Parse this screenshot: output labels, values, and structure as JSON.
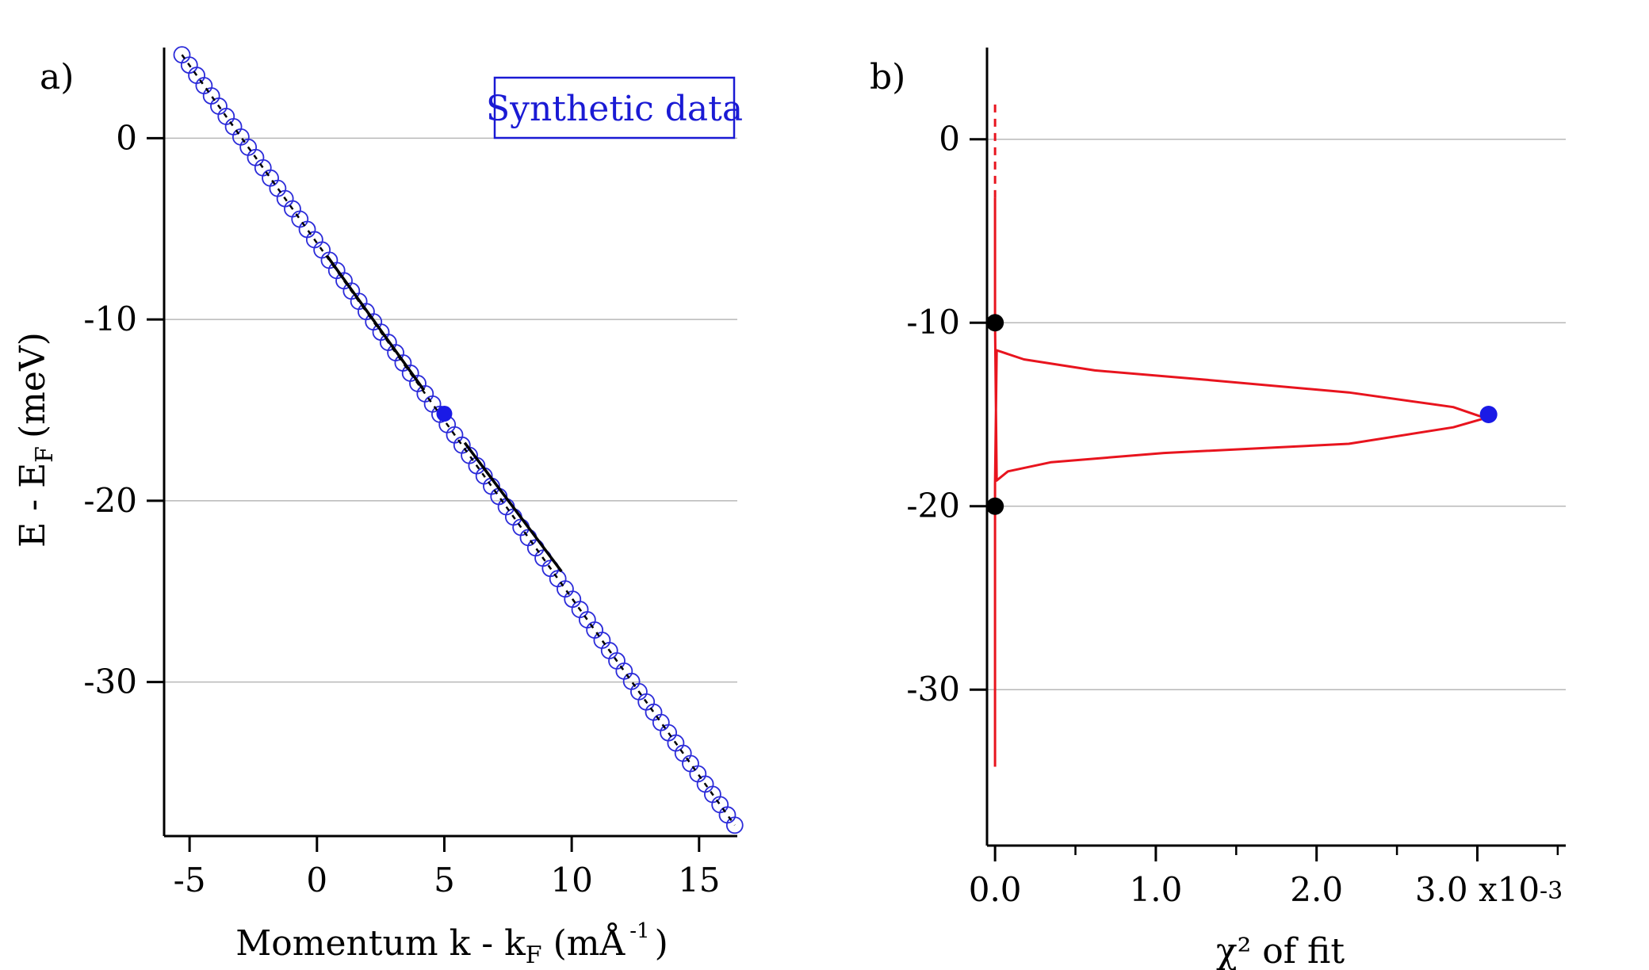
{
  "figure": {
    "panel_a_label": "a)",
    "panel_b_label": "b)"
  },
  "chart_data": [
    {
      "type": "scatter",
      "panel": "a)",
      "xlabel": "Momentum k - k",
      "xlabel_sub": "F",
      "xlabel_unit_open": "(mÅ",
      "xlabel_unit_sup": "-1",
      "xlabel_unit_close": ")",
      "ylabel": "E - E",
      "ylabel_sub": "F",
      "ylabel_unit": "(meV)",
      "xlim": [
        -6,
        16.5
      ],
      "ylim": [
        -38.5,
        5
      ],
      "xticks": [
        -5,
        0,
        5,
        10,
        15
      ],
      "xtick_labels": [
        "-5",
        "0",
        "5",
        "10",
        "15"
      ],
      "yticks": [
        0,
        -10,
        -20,
        -30
      ],
      "ytick_labels": [
        "0",
        "-10",
        "-20",
        "-30"
      ],
      "grid": "horizontal",
      "legend_box": "Synthetic data",
      "legend_placement": "top-right",
      "colors": {
        "markers": "#2b2bd9",
        "highlight": "#1a1ae6",
        "dispersion": "#000000"
      },
      "series": [
        {
          "style": "open-circles",
          "line": [
            [
              -5.3,
              4.6
            ],
            [
              16.4,
              -37.9
            ]
          ],
          "count": 76
        },
        {
          "style": "dashed-line",
          "line": [
            [
              -5.3,
              4.6
            ],
            [
              16.4,
              -37.9
            ]
          ]
        },
        {
          "style": "solid-line",
          "segments": [
            [
              [
                0.4,
                -6.5
              ],
              [
                4.2,
                -13.9
              ]
            ],
            [
              [
                5.8,
                -16.8
              ],
              [
                9.6,
                -23.9
              ]
            ]
          ]
        },
        {
          "style": "filled-point",
          "points": [
            [
              5.0,
              -15.2
            ]
          ]
        }
      ]
    },
    {
      "type": "line",
      "panel": "b)",
      "xlabel": "χ² of  fit",
      "ylabel": "",
      "xlim": [
        -0.05,
        3.55
      ],
      "ylim": [
        -38.5,
        5
      ],
      "xticks": [
        0.0,
        1.0,
        2.0,
        3.0
      ],
      "xtick_labels": [
        "0.0",
        "1.0",
        "2.0",
        "3.0 x10"
      ],
      "x_scale_exponent": "-3",
      "xminor_ticks": [
        0.5,
        1.5,
        2.5,
        3.5
      ],
      "yticks": [
        0,
        -10,
        -20,
        -30
      ],
      "ytick_labels": [
        "0",
        "-10",
        "-20",
        "-30"
      ],
      "grid": "horizontal",
      "colors": {
        "curve": "#e8141e",
        "points": "#000000",
        "peak": "#1a1ae6"
      },
      "series": [
        {
          "style": "solid",
          "x": [
            0.0,
            0.0,
            0.0,
            0.01,
            0.18,
            0.62,
            1.3,
            2.2,
            2.85,
            3.05,
            2.85,
            2.2,
            1.05,
            0.35,
            0.08,
            0.01,
            0.0,
            0.0
          ],
          "y": [
            -34.2,
            -20.0,
            -18.8,
            -11.5,
            -12.0,
            -12.6,
            -13.1,
            -13.8,
            -14.6,
            -15.2,
            -15.7,
            -16.6,
            -17.1,
            -17.6,
            -18.1,
            -18.6,
            -10.0,
            -3.2
          ]
        },
        {
          "style": "dashed",
          "x": [
            0.0,
            0.0
          ],
          "y": [
            -3.2,
            2.0
          ]
        },
        {
          "style": "markers-black",
          "x": [
            0.0,
            0.0
          ],
          "y": [
            -10.0,
            -20.0
          ]
        },
        {
          "style": "marker-blue",
          "x": [
            3.07
          ],
          "y": [
            -15.0
          ]
        }
      ]
    }
  ]
}
